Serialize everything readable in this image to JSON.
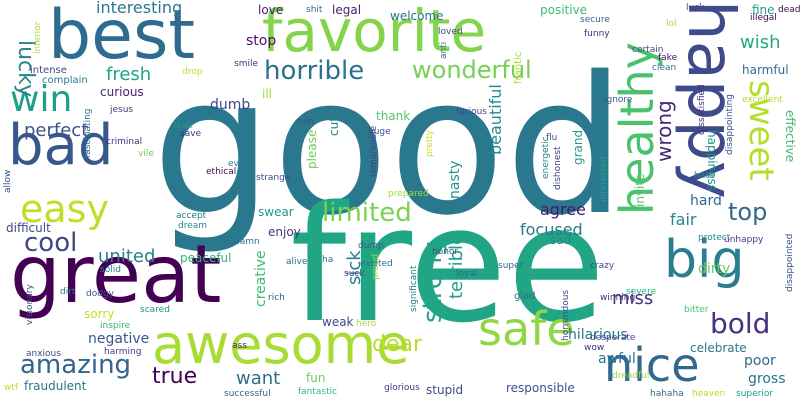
{
  "words": [
    {
      "text": "good",
      "color": "#2a788e"
    },
    {
      "text": "free",
      "color": "#21a685"
    },
    {
      "text": "great",
      "color": "#440154"
    },
    {
      "text": "best",
      "color": "#2f6b8e"
    },
    {
      "text": "favorite",
      "color": "#84d44b"
    },
    {
      "text": "happy",
      "color": "#3e4a89"
    },
    {
      "text": "bad",
      "color": "#38588c"
    },
    {
      "text": "awesome",
      "color": "#a8db34"
    },
    {
      "text": "big",
      "color": "#287d8e"
    },
    {
      "text": "nice",
      "color": "#31688e"
    },
    {
      "text": "safe",
      "color": "#8fd744"
    },
    {
      "text": "healthy",
      "color": "#4ac16d"
    },
    {
      "text": "easy",
      "color": "#bddf26"
    },
    {
      "text": "win",
      "color": "#1f9e89"
    },
    {
      "text": "sweet",
      "color": "#b5de2b"
    },
    {
      "text": "horrible",
      "color": "#2c728e"
    },
    {
      "text": "bold",
      "color": "#46327e"
    },
    {
      "text": "limited",
      "color": "#7ad151"
    },
    {
      "text": "wonderful",
      "color": "#75d054"
    },
    {
      "text": "amazing",
      "color": "#32648e"
    },
    {
      "text": "cool",
      "color": "#3f4788"
    },
    {
      "text": "strong",
      "color": "#20a386"
    },
    {
      "text": "top",
      "color": "#31688e"
    },
    {
      "text": "dear",
      "color": "#b8de29"
    },
    {
      "text": "true",
      "color": "#440154"
    },
    {
      "text": "lucky",
      "color": "#25848e"
    },
    {
      "text": "perfect",
      "color": "#3b528b"
    },
    {
      "text": "fresh",
      "color": "#20a386"
    },
    {
      "text": "interesting",
      "color": "#2a788e"
    },
    {
      "text": "united",
      "color": "#287d8e"
    },
    {
      "text": "wrong",
      "color": "#482878"
    },
    {
      "text": "beautiful",
      "color": "#23898e"
    },
    {
      "text": "sick",
      "color": "#277f8e"
    },
    {
      "text": "terrible",
      "color": "#1f9e89"
    },
    {
      "text": "want",
      "color": "#2e6f8e"
    },
    {
      "text": "wish",
      "color": "#22a884"
    },
    {
      "text": "miss",
      "color": "#453581"
    },
    {
      "text": "fair",
      "color": "#23898e"
    },
    {
      "text": "agree",
      "color": "#48186a"
    },
    {
      "text": "focused",
      "color": "#29798e"
    },
    {
      "text": "stop",
      "color": "#471164"
    },
    {
      "text": "fine",
      "color": "#1fa088"
    },
    {
      "text": "creative",
      "color": "#3dbc74"
    },
    {
      "text": "hilarious",
      "color": "#2b748e"
    },
    {
      "text": "nasty",
      "color": "#1f958b"
    },
    {
      "text": "dumb",
      "color": "#404688"
    },
    {
      "text": "curious",
      "color": "#482374"
    },
    {
      "text": "negative",
      "color": "#38588c"
    },
    {
      "text": "awful",
      "color": "#2d708e"
    },
    {
      "text": "dirty",
      "color": "#6ece58"
    },
    {
      "text": "poor",
      "color": "#31688e"
    },
    {
      "text": "gross",
      "color": "#2d708e"
    },
    {
      "text": "hard",
      "color": "#31688e"
    },
    {
      "text": "harmful",
      "color": "#2f6c8e"
    },
    {
      "text": "effective",
      "color": "#3dbc74"
    },
    {
      "text": "happiness",
      "color": "#21918c"
    },
    {
      "text": "positive",
      "color": "#3dbc74"
    },
    {
      "text": "grand",
      "color": "#1f9a8a"
    },
    {
      "text": "cute",
      "color": "#26828e"
    },
    {
      "text": "please",
      "color": "#6ccd5a"
    },
    {
      "text": "legal",
      "color": "#482071"
    },
    {
      "text": "love",
      "color": "#481f70"
    },
    {
      "text": "welcome",
      "color": "#2c728e"
    },
    {
      "text": "thank",
      "color": "#52c569"
    },
    {
      "text": "ill",
      "color": "#a0da39"
    },
    {
      "text": "enjoy",
      "color": "#46337f"
    },
    {
      "text": "swear",
      "color": "#1f978b"
    },
    {
      "text": "fun",
      "color": "#6ccd5a"
    },
    {
      "text": "sad",
      "color": "#25848e"
    },
    {
      "text": "difficult",
      "color": "#3e4a89"
    },
    {
      "text": "peaceful",
      "color": "#31b57b"
    },
    {
      "text": "sorry",
      "color": "#c2df23"
    },
    {
      "text": "weak",
      "color": "#3e4989"
    },
    {
      "text": "celebrate",
      "color": "#2b758e"
    },
    {
      "text": "responsible",
      "color": "#3b528b"
    },
    {
      "text": "stupid",
      "color": "#3e4a89"
    },
    {
      "text": "fraudulent",
      "color": "#2c738e"
    },
    {
      "text": "invite",
      "color": "#54c568"
    },
    {
      "text": "glad",
      "color": "#2e6e8e"
    },
    {
      "text": "intense",
      "color": "#3e4989"
    },
    {
      "text": "complain",
      "color": "#287c8e"
    },
    {
      "text": "frantic",
      "color": "#a5db36"
    },
    {
      "text": "dead",
      "color": "#440154"
    },
    {
      "text": "illegal",
      "color": "#440154"
    },
    {
      "text": "funny",
      "color": "#472a7a"
    },
    {
      "text": "loved",
      "color": "#3f4889"
    },
    {
      "text": "furious",
      "color": "#433e85"
    },
    {
      "text": "ignore",
      "color": "#38598c"
    },
    {
      "text": "flu",
      "color": "#38588c"
    },
    {
      "text": "huge",
      "color": "#3c4f8a"
    },
    {
      "text": "jesus",
      "color": "#424186"
    },
    {
      "text": "criminal",
      "color": "#472c7a"
    },
    {
      "text": "smile",
      "color": "#46307e"
    },
    {
      "text": "anxious",
      "color": "#3e4c8a"
    },
    {
      "text": "excited",
      "color": "#2d708e"
    },
    {
      "text": "alive",
      "color": "#2e6e8e"
    },
    {
      "text": "rich",
      "color": "#34618d"
    },
    {
      "text": "dodgy",
      "color": "#3b528b"
    },
    {
      "text": "inspire",
      "color": "#31b57b"
    },
    {
      "text": "ass",
      "color": "#482475"
    },
    {
      "text": "dump",
      "color": "#355f8d"
    },
    {
      "text": "strange",
      "color": "#3b518b"
    },
    {
      "text": "accept",
      "color": "#2a788e"
    },
    {
      "text": "dream",
      "color": "#23898e"
    },
    {
      "text": "damn",
      "color": "#2b758e"
    },
    {
      "text": "solid",
      "color": "#25858e"
    },
    {
      "text": "dirt",
      "color": "#287d8e"
    },
    {
      "text": "super",
      "color": "#2e6e8e"
    },
    {
      "text": "loyal",
      "color": "#34618d"
    },
    {
      "text": "crazy",
      "color": "#404688"
    },
    {
      "text": "hero",
      "color": "#a2da37"
    },
    {
      "text": "suck",
      "color": "#424086"
    },
    {
      "text": "ha",
      "color": "#2e6d8e"
    },
    {
      "text": "proud",
      "color": "#95d840"
    },
    {
      "text": "winning",
      "color": "#482878"
    },
    {
      "text": "severe",
      "color": "#31b57b"
    },
    {
      "text": "bitter",
      "color": "#4ac16d"
    },
    {
      "text": "desperate",
      "color": "#3e4a89"
    },
    {
      "text": "wow",
      "color": "#46307e"
    },
    {
      "text": "dreadful",
      "color": "#9bd93c"
    },
    {
      "text": "hahaha",
      "color": "#31688e"
    },
    {
      "text": "heaven",
      "color": "#b8de29"
    },
    {
      "text": "superior",
      "color": "#1f9a8a"
    },
    {
      "text": "unhappy",
      "color": "#453882"
    },
    {
      "text": "protect",
      "color": "#23898e"
    },
    {
      "text": "hate",
      "color": "#21918c"
    },
    {
      "text": "excellent",
      "color": "#b2dd2d"
    },
    {
      "text": "lol",
      "color": "#a5db36"
    },
    {
      "text": "luck",
      "color": "#3f4889"
    },
    {
      "text": "secure",
      "color": "#30678d"
    },
    {
      "text": "certain",
      "color": "#3e4989"
    },
    {
      "text": "fake",
      "color": "#471365"
    },
    {
      "text": "clean",
      "color": "#2c728e"
    },
    {
      "text": "shit",
      "color": "#2f6c8e"
    },
    {
      "text": "drop",
      "color": "#bddf26"
    },
    {
      "text": "leak",
      "color": "#1f9a8a"
    },
    {
      "text": "save",
      "color": "#46307e"
    },
    {
      "text": "vile",
      "color": "#6ece58"
    },
    {
      "text": "evil",
      "color": "#2a788e"
    },
    {
      "text": "ethical",
      "color": "#440154"
    },
    {
      "text": "ruin",
      "color": "#3b528b"
    },
    {
      "text": "fantastic",
      "color": "#35b779"
    },
    {
      "text": "successful",
      "color": "#31688e"
    },
    {
      "text": "glorious",
      "color": "#453781"
    },
    {
      "text": "scared",
      "color": "#1f958b"
    },
    {
      "text": "harming",
      "color": "#443983"
    },
    {
      "text": "honor",
      "color": "#3b528b"
    },
    {
      "text": "prepared",
      "color": "#a0da39"
    },
    {
      "text": "wtf",
      "color": "#b5de2b"
    },
    {
      "text": "inferior",
      "color": "#a5db36"
    },
    {
      "text": "fascinating",
      "color": "#2c728e"
    },
    {
      "text": "allow",
      "color": "#3e4a89"
    },
    {
      "text": "visionary",
      "color": "#3b518b"
    },
    {
      "text": "remarkable",
      "color": "#3f4889"
    },
    {
      "text": "pretty",
      "color": "#c8e020"
    },
    {
      "text": "energetic",
      "color": "#26828e"
    },
    {
      "text": "dishonest",
      "color": "#424186"
    },
    {
      "text": "interested",
      "color": "#1fa188"
    },
    {
      "text": "significant",
      "color": "#29798e"
    },
    {
      "text": "horrendous",
      "color": "#3e4a89"
    },
    {
      "text": "anti",
      "color": "#2e6f8e"
    },
    {
      "text": "disappointing",
      "color": "#3b528b"
    },
    {
      "text": "dissatisfied",
      "color": "#46307e"
    },
    {
      "text": "disappointed",
      "color": "#3b528b"
    }
  ]
}
